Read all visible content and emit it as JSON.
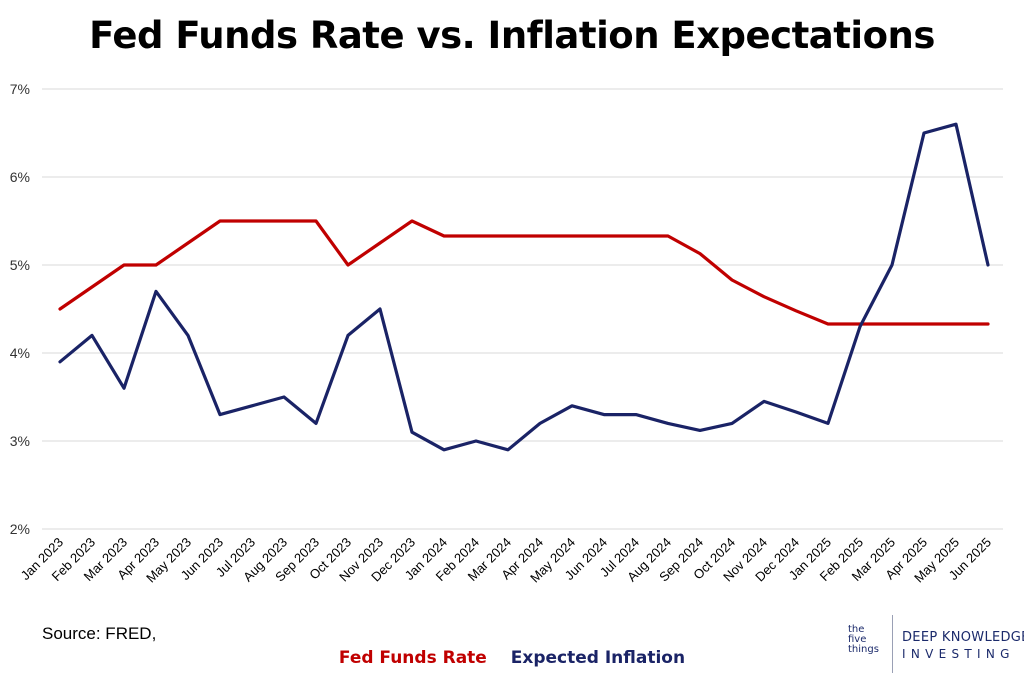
{
  "chart_data": {
    "type": "line",
    "title": "Fed Funds Rate vs. Inflation Expectations",
    "categories": [
      "Jan 2023",
      "Feb 2023",
      "Mar 2023",
      "Apr 2023",
      "May 2023",
      "Jun 2023",
      "Jul 2023",
      "Aug 2023",
      "Sep 2023",
      "Oct 2023",
      "Nov 2023",
      "Dec 2023",
      "Jan 2024",
      "Feb 2024",
      "Mar 2024",
      "Apr 2024",
      "May 2024",
      "Jun 2024",
      "Jul 2024",
      "Aug 2024",
      "Sep 2024",
      "Oct 2024",
      "Nov 2024",
      "Dec 2024",
      "Jan 2025",
      "Feb 2025",
      "Mar 2025",
      "Apr 2025",
      "May 2025",
      "Jun 2025"
    ],
    "series": [
      {
        "name": "Fed Funds Rate",
        "color": "#c00000",
        "values": [
          4.5,
          4.75,
          5.0,
          5.0,
          5.25,
          5.5,
          5.5,
          5.5,
          5.5,
          5.0,
          5.25,
          5.5,
          5.33,
          5.33,
          5.33,
          5.33,
          5.33,
          5.33,
          5.33,
          5.33,
          5.13,
          4.83,
          4.64,
          4.48,
          4.33,
          4.33,
          4.33,
          4.33,
          4.33,
          4.33
        ]
      },
      {
        "name": "Expected Inflation",
        "color": "#1a2366",
        "values": [
          3.9,
          4.2,
          3.6,
          4.7,
          4.2,
          3.3,
          3.4,
          3.5,
          3.2,
          4.2,
          4.5,
          3.1,
          2.9,
          3.0,
          2.9,
          3.2,
          3.4,
          3.3,
          3.3,
          3.2,
          3.12,
          3.2,
          3.45,
          3.33,
          3.2,
          4.3,
          5.0,
          6.5,
          6.6,
          5.0
        ]
      }
    ],
    "yticks": [
      "2%",
      "3%",
      "4%",
      "5%",
      "6%",
      "7%"
    ],
    "ylim": [
      2,
      7
    ],
    "grid": true,
    "legend": "bottom-center"
  },
  "source": "Source: FRED,",
  "logo": {
    "small_text": [
      "the",
      "five",
      "things"
    ],
    "line1": "DEEP KNOWLEDGE",
    "line2": "INVESTING"
  }
}
